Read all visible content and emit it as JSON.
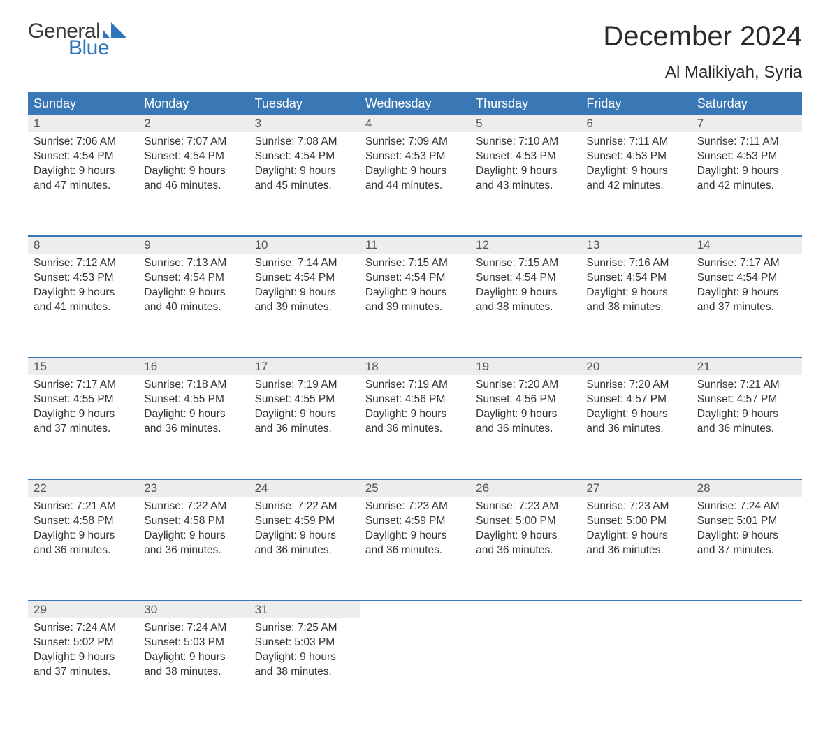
{
  "brand": {
    "word1": "General",
    "word2": "Blue",
    "text_color": "#3a3a3a",
    "accent_color": "#2d76bb"
  },
  "title": "December 2024",
  "location": "Al Malikiyah, Syria",
  "header_bg": "#3a78b5",
  "header_text_color": "#ffffff",
  "date_bg": "#ededed",
  "rule_color": "#3a78b5",
  "body_bg": "#ffffff",
  "text_color": "#333333",
  "fonts": {
    "title_size": 40,
    "location_size": 24,
    "header_size": 18,
    "body_size": 15.5
  },
  "day_names": [
    "Sunday",
    "Monday",
    "Tuesday",
    "Wednesday",
    "Thursday",
    "Friday",
    "Saturday"
  ],
  "weeks": [
    [
      {
        "d": "1",
        "sunrise": "7:06 AM",
        "sunset": "4:54 PM",
        "daylight": "9 hours and 47 minutes."
      },
      {
        "d": "2",
        "sunrise": "7:07 AM",
        "sunset": "4:54 PM",
        "daylight": "9 hours and 46 minutes."
      },
      {
        "d": "3",
        "sunrise": "7:08 AM",
        "sunset": "4:54 PM",
        "daylight": "9 hours and 45 minutes."
      },
      {
        "d": "4",
        "sunrise": "7:09 AM",
        "sunset": "4:53 PM",
        "daylight": "9 hours and 44 minutes."
      },
      {
        "d": "5",
        "sunrise": "7:10 AM",
        "sunset": "4:53 PM",
        "daylight": "9 hours and 43 minutes."
      },
      {
        "d": "6",
        "sunrise": "7:11 AM",
        "sunset": "4:53 PM",
        "daylight": "9 hours and 42 minutes."
      },
      {
        "d": "7",
        "sunrise": "7:11 AM",
        "sunset": "4:53 PM",
        "daylight": "9 hours and 42 minutes."
      }
    ],
    [
      {
        "d": "8",
        "sunrise": "7:12 AM",
        "sunset": "4:53 PM",
        "daylight": "9 hours and 41 minutes."
      },
      {
        "d": "9",
        "sunrise": "7:13 AM",
        "sunset": "4:54 PM",
        "daylight": "9 hours and 40 minutes."
      },
      {
        "d": "10",
        "sunrise": "7:14 AM",
        "sunset": "4:54 PM",
        "daylight": "9 hours and 39 minutes."
      },
      {
        "d": "11",
        "sunrise": "7:15 AM",
        "sunset": "4:54 PM",
        "daylight": "9 hours and 39 minutes."
      },
      {
        "d": "12",
        "sunrise": "7:15 AM",
        "sunset": "4:54 PM",
        "daylight": "9 hours and 38 minutes."
      },
      {
        "d": "13",
        "sunrise": "7:16 AM",
        "sunset": "4:54 PM",
        "daylight": "9 hours and 38 minutes."
      },
      {
        "d": "14",
        "sunrise": "7:17 AM",
        "sunset": "4:54 PM",
        "daylight": "9 hours and 37 minutes."
      }
    ],
    [
      {
        "d": "15",
        "sunrise": "7:17 AM",
        "sunset": "4:55 PM",
        "daylight": "9 hours and 37 minutes."
      },
      {
        "d": "16",
        "sunrise": "7:18 AM",
        "sunset": "4:55 PM",
        "daylight": "9 hours and 36 minutes."
      },
      {
        "d": "17",
        "sunrise": "7:19 AM",
        "sunset": "4:55 PM",
        "daylight": "9 hours and 36 minutes."
      },
      {
        "d": "18",
        "sunrise": "7:19 AM",
        "sunset": "4:56 PM",
        "daylight": "9 hours and 36 minutes."
      },
      {
        "d": "19",
        "sunrise": "7:20 AM",
        "sunset": "4:56 PM",
        "daylight": "9 hours and 36 minutes."
      },
      {
        "d": "20",
        "sunrise": "7:20 AM",
        "sunset": "4:57 PM",
        "daylight": "9 hours and 36 minutes."
      },
      {
        "d": "21",
        "sunrise": "7:21 AM",
        "sunset": "4:57 PM",
        "daylight": "9 hours and 36 minutes."
      }
    ],
    [
      {
        "d": "22",
        "sunrise": "7:21 AM",
        "sunset": "4:58 PM",
        "daylight": "9 hours and 36 minutes."
      },
      {
        "d": "23",
        "sunrise": "7:22 AM",
        "sunset": "4:58 PM",
        "daylight": "9 hours and 36 minutes."
      },
      {
        "d": "24",
        "sunrise": "7:22 AM",
        "sunset": "4:59 PM",
        "daylight": "9 hours and 36 minutes."
      },
      {
        "d": "25",
        "sunrise": "7:23 AM",
        "sunset": "4:59 PM",
        "daylight": "9 hours and 36 minutes."
      },
      {
        "d": "26",
        "sunrise": "7:23 AM",
        "sunset": "5:00 PM",
        "daylight": "9 hours and 36 minutes."
      },
      {
        "d": "27",
        "sunrise": "7:23 AM",
        "sunset": "5:00 PM",
        "daylight": "9 hours and 36 minutes."
      },
      {
        "d": "28",
        "sunrise": "7:24 AM",
        "sunset": "5:01 PM",
        "daylight": "9 hours and 37 minutes."
      }
    ],
    [
      {
        "d": "29",
        "sunrise": "7:24 AM",
        "sunset": "5:02 PM",
        "daylight": "9 hours and 37 minutes."
      },
      {
        "d": "30",
        "sunrise": "7:24 AM",
        "sunset": "5:03 PM",
        "daylight": "9 hours and 38 minutes."
      },
      {
        "d": "31",
        "sunrise": "7:25 AM",
        "sunset": "5:03 PM",
        "daylight": "9 hours and 38 minutes."
      },
      null,
      null,
      null,
      null
    ]
  ],
  "labels": {
    "sunrise": "Sunrise:",
    "sunset": "Sunset:",
    "daylight": "Daylight:"
  }
}
